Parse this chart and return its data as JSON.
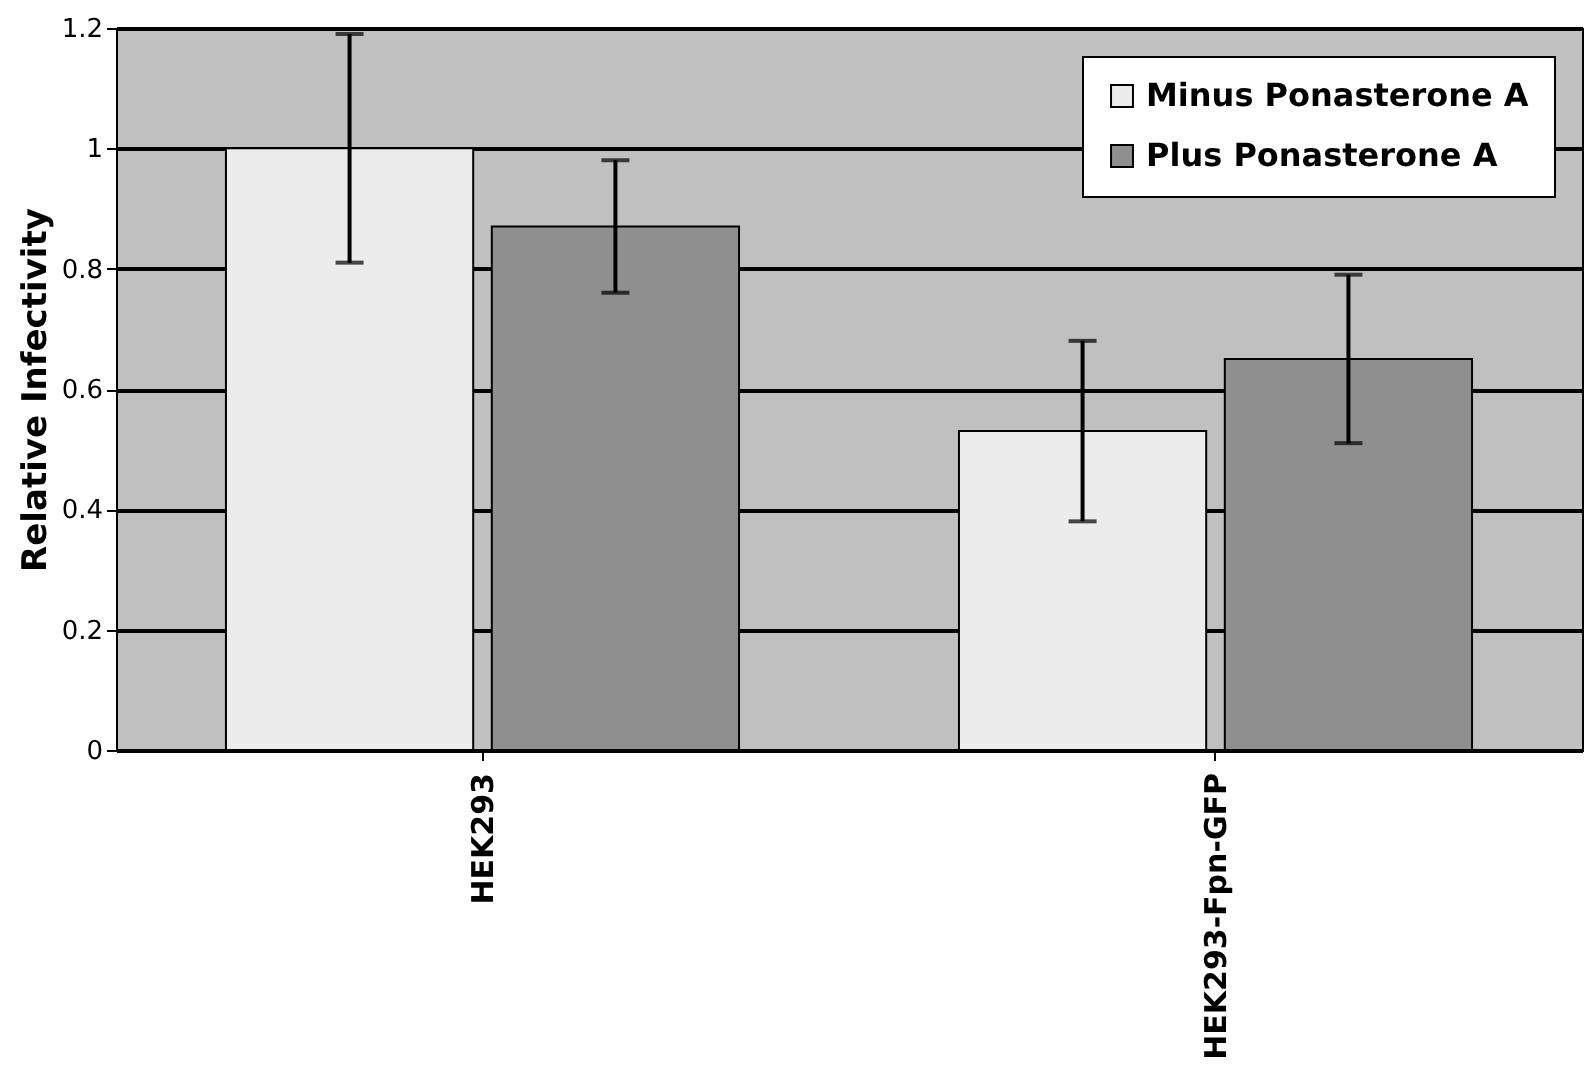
{
  "chart_data": {
    "type": "bar",
    "ylabel": "Relative Infectivity",
    "categories": [
      "HEK293",
      "HEK293-Fpn-GFP"
    ],
    "series": [
      {
        "name": "Minus Ponasterone A",
        "color": "#ececec",
        "values": [
          1.0,
          0.53
        ],
        "errors": [
          0.19,
          0.15
        ]
      },
      {
        "name": "Plus Ponasterone A",
        "color": "#8f8f8f",
        "values": [
          0.87,
          0.65
        ],
        "errors": [
          0.11,
          0.14
        ]
      }
    ],
    "ylim": [
      0,
      1.2
    ],
    "yticks": [
      0,
      0.2,
      0.4,
      0.6,
      0.8,
      1,
      1.2
    ],
    "grid": "y",
    "legend": "top right"
  }
}
